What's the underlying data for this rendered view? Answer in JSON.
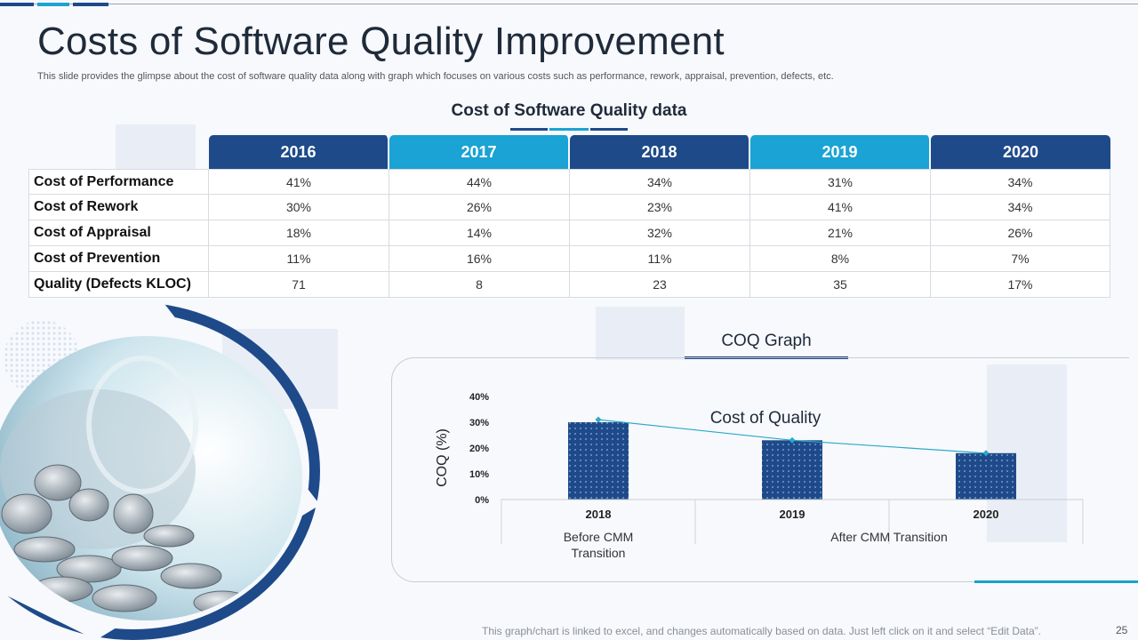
{
  "title": "Costs of Software Quality Improvement",
  "subtitle": "This slide provides the glimpse about the cost of software quality data along with graph which focuses on various costs such as performance, rework, appraisal, prevention, defects, etc.",
  "table": {
    "title": "Cost of Software Quality data",
    "years": [
      "2016",
      "2017",
      "2018",
      "2019",
      "2020"
    ],
    "rows": [
      {
        "label": "Cost of Performance",
        "values": [
          "41%",
          "44%",
          "34%",
          "31%",
          "34%"
        ]
      },
      {
        "label": "Cost of Rework",
        "values": [
          "30%",
          "26%",
          "23%",
          "41%",
          "34%"
        ]
      },
      {
        "label": "Cost of Appraisal",
        "values": [
          "18%",
          "14%",
          "32%",
          "21%",
          "26%"
        ]
      },
      {
        "label": "Cost of Prevention",
        "values": [
          "11%",
          "16%",
          "11%",
          "8%",
          "7%"
        ]
      },
      {
        "label": "Quality (Defects KLOC)",
        "values": [
          "71",
          "8",
          "23",
          "35",
          "17%"
        ]
      }
    ]
  },
  "chart_section_title": "COQ Graph",
  "chart_data": {
    "type": "bar",
    "title": "Cost of Quality",
    "ylabel": "COQ (%)",
    "xlabel": "",
    "ylim": [
      0,
      40
    ],
    "yticks": [
      "0%",
      "10%",
      "20%",
      "30%",
      "40%"
    ],
    "categories": [
      "2018",
      "2019",
      "2020"
    ],
    "groups": [
      {
        "label": "Before CMM Transition",
        "categories": [
          "2018"
        ]
      },
      {
        "label": "After CMM Transition",
        "categories": [
          "2019",
          "2020"
        ]
      }
    ],
    "series": [
      {
        "name": "Cost of Quality",
        "type": "bar",
        "values": [
          30,
          23,
          18
        ]
      },
      {
        "name": "Trend",
        "type": "line",
        "values": [
          31,
          23,
          18
        ]
      }
    ]
  },
  "colors": {
    "navy": "#1e4a8a",
    "cyan": "#1aa3d4",
    "trend": "#29a9c9",
    "text": "#1f2a3a"
  },
  "footer": "This graph/chart is linked to excel, and changes automatically based on data. Just left click on it and select “Edit Data”.",
  "page_number": "25"
}
